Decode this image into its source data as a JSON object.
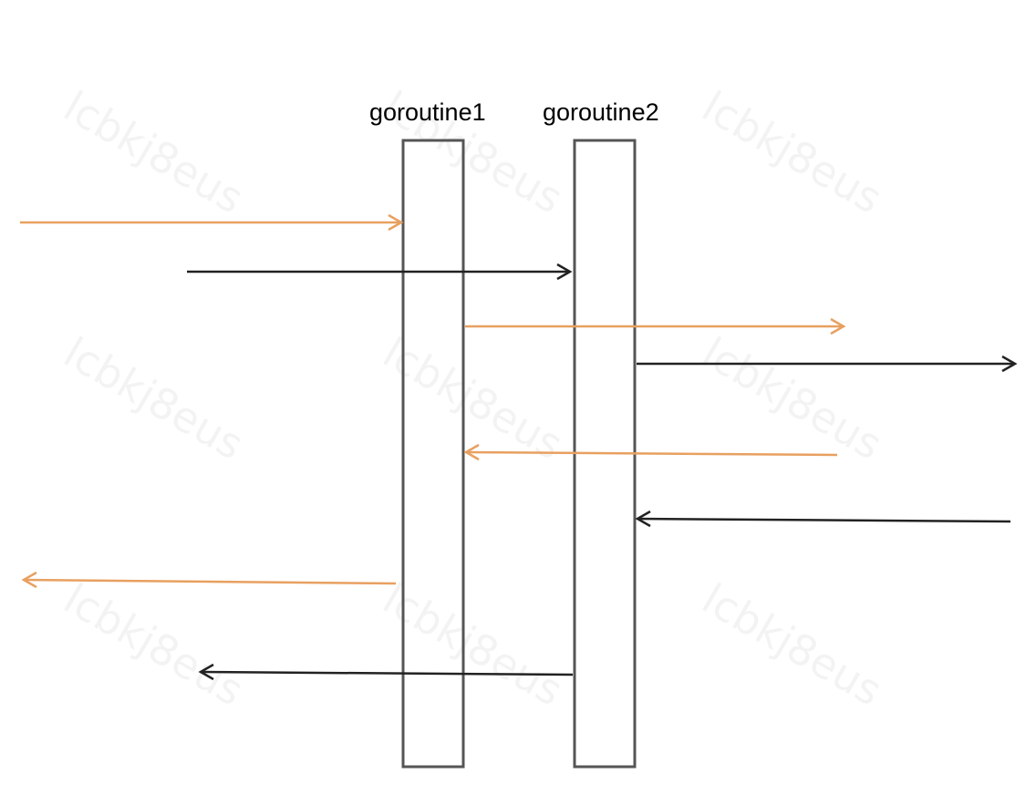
{
  "diagram": {
    "lifelines": [
      {
        "label": "goroutine1"
      },
      {
        "label": "goroutine2"
      }
    ],
    "watermark": "lcbkj8eus",
    "colors": {
      "orange": "#E8A060",
      "black": "#222222",
      "box_border": "#555555"
    }
  }
}
